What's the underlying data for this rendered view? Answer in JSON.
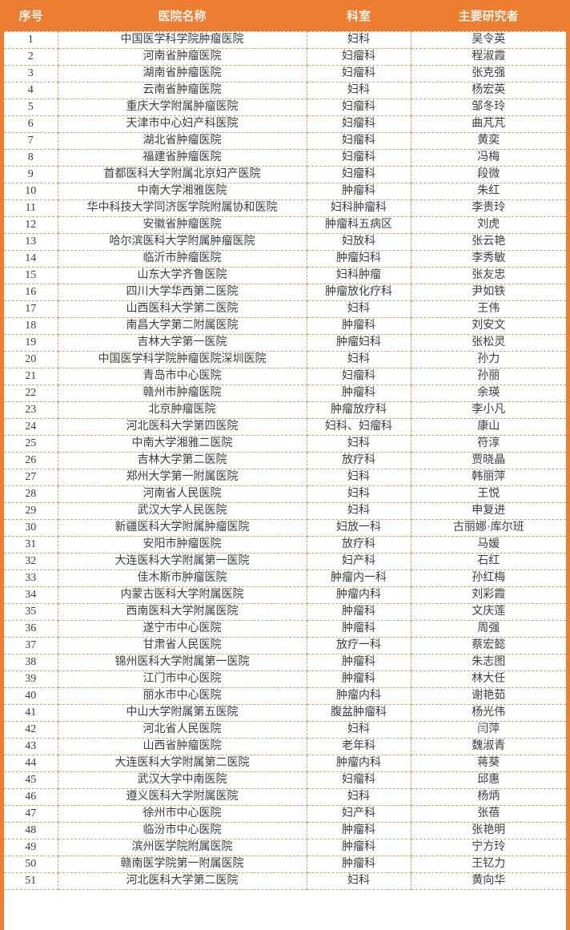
{
  "colors": {
    "header_bg": "#ED7D31",
    "edge_strip": "#ED7D31",
    "dashed_border": "#D9A36F",
    "cell_text": "#3D3D3D",
    "header_text": "#FBF3E8",
    "row_bg": "#FFFFFF"
  },
  "table": {
    "columns": [
      "序号",
      "医院名称",
      "科室",
      "主要研究者"
    ],
    "rows": [
      [
        "1",
        "中国医学科学院肿瘤医院",
        "妇科",
        "吴令英"
      ],
      [
        "2",
        "河南省肿瘤医院",
        "妇瘤科",
        "程淑霞"
      ],
      [
        "3",
        "湖南省肿瘤医院",
        "妇瘤科",
        "张克强"
      ],
      [
        "4",
        "云南省肿瘤医院",
        "妇科",
        "杨宏英"
      ],
      [
        "5",
        "重庆大学附属肿瘤医院",
        "妇瘤科",
        "邹冬玲"
      ],
      [
        "6",
        "天津市中心妇产科医院",
        "妇瘤科",
        "曲芃芃"
      ],
      [
        "7",
        "湖北省肿瘤医院",
        "妇瘤科",
        "黄奕"
      ],
      [
        "8",
        "福建省肿瘤医院",
        "妇瘤科",
        "冯梅"
      ],
      [
        "9",
        "首都医科大学附属北京妇产医院",
        "妇瘤科",
        "段微"
      ],
      [
        "10",
        "中南大学湘雅医院",
        "肿瘤科",
        "朱红"
      ],
      [
        "11",
        "华中科技大学同济医学院附属协和医院",
        "妇科肿瘤科",
        "李贵玲"
      ],
      [
        "12",
        "安徽省肿瘤医院",
        "肿瘤科五病区",
        "刘虎"
      ],
      [
        "13",
        "哈尔滨医科大学附属肿瘤医院",
        "妇放科",
        "张云艳"
      ],
      [
        "14",
        "临沂市肿瘤医院",
        "肿瘤妇科",
        "李秀敏"
      ],
      [
        "15",
        "山东大学齐鲁医院",
        "妇科肿瘤",
        "张友忠"
      ],
      [
        "16",
        "四川大学华西第二医院",
        "肿瘤放化疗科",
        "尹如铁"
      ],
      [
        "17",
        "山西医科大学第二医院",
        "妇科",
        "王伟"
      ],
      [
        "18",
        "南昌大学第二附属医院",
        "肿瘤科",
        "刘安文"
      ],
      [
        "19",
        "吉林大学第一医院",
        "肿瘤妇科",
        "张松灵"
      ],
      [
        "20",
        "中国医学科学院肿瘤医院深圳医院",
        "妇科",
        "孙力"
      ],
      [
        "21",
        "青岛市中心医院",
        "妇瘤科",
        "孙丽"
      ],
      [
        "22",
        "赣州市肿瘤医院",
        "肿瘤科",
        "余瑛"
      ],
      [
        "23",
        "北京肿瘤医院",
        "肿瘤放疗科",
        "李小凡"
      ],
      [
        "24",
        "河北医科大学第四医院",
        "妇科、妇瘤科",
        "康山"
      ],
      [
        "25",
        "中南大学湘雅二医院",
        "妇科",
        "符淳"
      ],
      [
        "26",
        "吉林大学第二医院",
        "放疗科",
        "贾晓晶"
      ],
      [
        "27",
        "郑州大学第一附属医院",
        "妇科",
        "韩丽萍"
      ],
      [
        "28",
        "河南省人民医院",
        "妇科",
        "王悦"
      ],
      [
        "29",
        "武汉大学人民医院",
        "妇科",
        "申复进"
      ],
      [
        "30",
        "新疆医科大学附属肿瘤医院",
        "妇放一科",
        "古丽娜·库尔班"
      ],
      [
        "31",
        "安阳市肿瘤医院",
        "放疗科",
        "马媛"
      ],
      [
        "32",
        "大连医科大学附属第一医院",
        "妇产科",
        "石红"
      ],
      [
        "33",
        "佳木斯市肿瘤医院",
        "肿瘤内一科",
        "孙红梅"
      ],
      [
        "34",
        "内蒙古医科大学附属医院",
        "肿瘤内科",
        "刘彩霞"
      ],
      [
        "35",
        "西南医科大学附属医院",
        "肿瘤科",
        "文庆莲"
      ],
      [
        "36",
        "遂宁市中心医院",
        "肿瘤科",
        "周强"
      ],
      [
        "37",
        "甘肃省人民医院",
        "放疗一科",
        "蔡宏懿"
      ],
      [
        "38",
        "锦州医科大学附属第一医院",
        "肿瘤科",
        "朱志图"
      ],
      [
        "39",
        "江门市中心医院",
        "肿瘤科",
        "林大任"
      ],
      [
        "40",
        "丽水市中心医院",
        "肿瘤内科",
        "谢艳茹"
      ],
      [
        "41",
        "中山大学附属第五医院",
        "腹盆肿瘤科",
        "杨光伟"
      ],
      [
        "42",
        "河北省人民医院",
        "妇科",
        "闫萍"
      ],
      [
        "43",
        "山西省肿瘤医院",
        "老年科",
        "魏淑青"
      ],
      [
        "44",
        "大连医科大学附属第二医院",
        "肿瘤内科",
        "蒋葵"
      ],
      [
        "45",
        "武汉大学中南医院",
        "妇瘤科",
        "邱惠"
      ],
      [
        "46",
        "遵义医科大学附属医院",
        "妇科",
        "杨炳"
      ],
      [
        "47",
        "徐州市中心医院",
        "妇产科",
        "张蓓"
      ],
      [
        "48",
        "临汾市中心医院",
        "肿瘤科",
        "张艳明"
      ],
      [
        "49",
        "滨州医学院附属医院",
        "肿瘤科",
        "宁方玲"
      ],
      [
        "50",
        "赣南医学院第一附属医院",
        "肿瘤科",
        "王钇力"
      ],
      [
        "51",
        "河北医科大学第二医院",
        "妇科",
        "黄向华"
      ]
    ]
  }
}
